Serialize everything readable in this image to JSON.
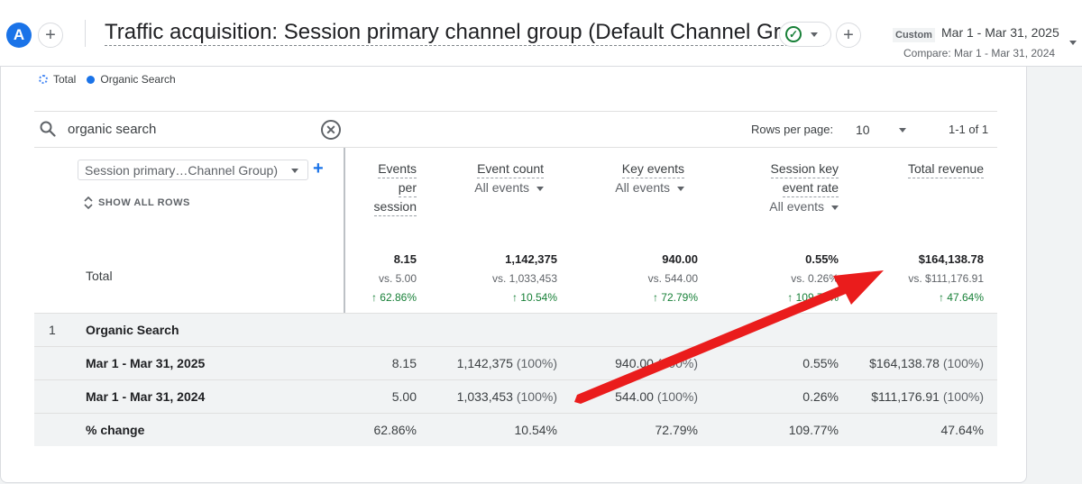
{
  "header": {
    "avatar_letter": "A",
    "title": "Traffic acquisition: Session primary channel group (Default Channel Group)",
    "date_badge": "Custom",
    "date_range": "Mar 1 - Mar 31, 2025",
    "compare": "Compare: Mar 1 - Mar 31, 2024"
  },
  "legend": {
    "total": "Total",
    "series": "Organic Search"
  },
  "toolbar": {
    "search_value": "organic search",
    "rows_per_page_label": "Rows per page:",
    "rows_per_page_value": "10",
    "page_info": "1-1 of 1"
  },
  "dimension": {
    "select_label": "Session primary…Channel Group)",
    "show_all": "SHOW ALL ROWS"
  },
  "columns": {
    "events_per_session": [
      "Events",
      "per",
      "session"
    ],
    "event_count": {
      "name": "Event count",
      "filter": "All events"
    },
    "key_events": {
      "name": "Key events",
      "filter": "All events"
    },
    "session_key_event_rate": {
      "name1": "Session key",
      "name2": "event rate",
      "filter": "All events"
    },
    "total_revenue": "Total revenue"
  },
  "totals": {
    "label": "Total",
    "eps": {
      "value": "8.15",
      "vs": "vs. 5.00",
      "change": "↑ 62.86%"
    },
    "ec": {
      "value": "1,142,375",
      "vs": "vs. 1,033,453",
      "change": "↑ 10.54%"
    },
    "ke": {
      "value": "940.00",
      "vs": "vs. 544.00",
      "change": "↑ 72.79%"
    },
    "sker": {
      "value": "0.55%",
      "vs": "vs. 0.26%",
      "change": "↑ 109.77%"
    },
    "rev": {
      "value": "$164,138.78",
      "vs": "vs. $111,176.91",
      "change": "↑ 47.64%"
    }
  },
  "rows": {
    "group": {
      "num": "1",
      "label": "Organic Search"
    },
    "r2025": {
      "label": "Mar 1 - Mar 31, 2025",
      "eps": "8.15",
      "ec": "1,142,375",
      "ec_pct": "(100%)",
      "ke": "940.00",
      "ke_pct": "(100%)",
      "sker": "0.55%",
      "rev": "$164,138.78",
      "rev_pct": "(100%)"
    },
    "r2024": {
      "label": "Mar 1 - Mar 31, 2024",
      "eps": "5.00",
      "ec": "1,033,453",
      "ec_pct": "(100%)",
      "ke": "544.00",
      "ke_pct": "(100%)",
      "sker": "0.26%",
      "rev": "$111,176.91",
      "rev_pct": "(100%)"
    },
    "change": {
      "label": "% change",
      "eps": "62.86%",
      "ec": "10.54%",
      "ke": "72.79%",
      "sker": "109.77%",
      "rev": "47.64%"
    }
  },
  "colors": {
    "accent": "#1a73e8",
    "positive": "#188038",
    "annotation_arrow": "#ea1c1c"
  }
}
